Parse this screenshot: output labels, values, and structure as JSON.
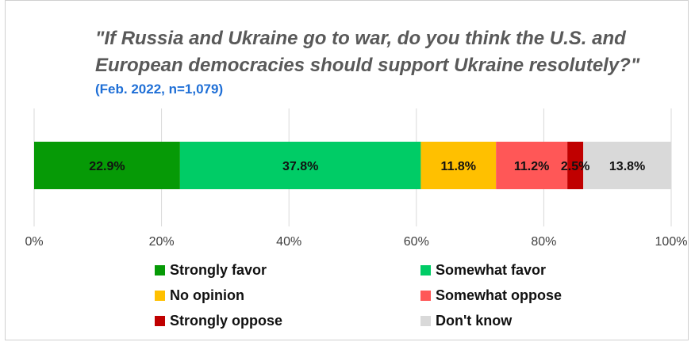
{
  "chart_data": {
    "type": "bar",
    "orientation": "horizontal-stacked",
    "title": "\"If Russia and Ukraine go to war, do you think the U.S. and European democracies should support Ukraine resolutely?\"",
    "subtitle": "(Feb. 2022, n=1,079)",
    "series": [
      {
        "name": "Strongly favor",
        "value": 22.9,
        "label": "22.9%",
        "color": "#069a06"
      },
      {
        "name": "Somewhat favor",
        "value": 37.8,
        "label": "37.8%",
        "color": "#00cc66"
      },
      {
        "name": "No opinion",
        "value": 11.8,
        "label": "11.8%",
        "color": "#ffc000"
      },
      {
        "name": "Somewhat oppose",
        "value": 11.2,
        "label": "11.2%",
        "color": "#ff5757"
      },
      {
        "name": "Strongly oppose",
        "value": 2.5,
        "label": "2.5%",
        "color": "#c00000"
      },
      {
        "name": "Don't know",
        "value": 13.8,
        "label": "13.8%",
        "color": "#d9d9d9"
      }
    ],
    "xlim": [
      0,
      100
    ],
    "ticks": [
      "0%",
      "20%",
      "40%",
      "60%",
      "80%",
      "100%"
    ],
    "grid": true,
    "legend_position": "bottom"
  }
}
